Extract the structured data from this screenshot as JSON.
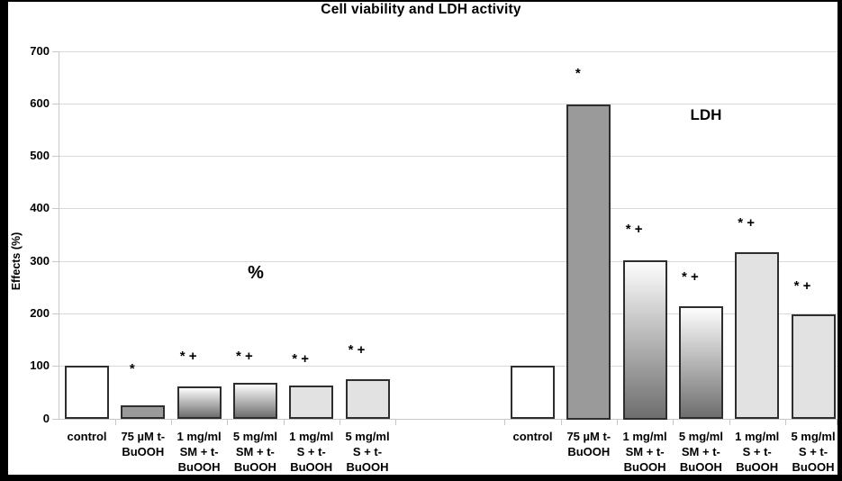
{
  "chart_data": {
    "type": "bar",
    "title": "Cell viability and LDH activity",
    "ylabel": "Effects (%)",
    "xlabel": "",
    "ylim": [
      0,
      700
    ],
    "yticks": [
      0,
      100,
      200,
      300,
      400,
      500,
      600,
      700
    ],
    "grid": true,
    "legend": false,
    "categories": [
      "control",
      "75 µM t-BuOOH",
      "1 mg/ml SM + t-BuOOH",
      "5 mg/ml SM + t-BuOOH",
      "1 mg/ml S + t-BuOOH",
      "5 mg/ml S + t-BuOOH"
    ],
    "category_lines": [
      [
        "control"
      ],
      [
        "75 µM t-",
        "BuOOH"
      ],
      [
        "1 mg/ml",
        "SM + t-",
        "BuOOH"
      ],
      [
        "5 mg/ml",
        "SM + t-",
        "BuOOH"
      ],
      [
        "1 mg/ml",
        "S + t-",
        "BuOOH"
      ],
      [
        "5 mg/ml",
        "S + t-",
        "BuOOH"
      ]
    ],
    "bar_styles": [
      "white",
      "solid-gray",
      "gradient",
      "gradient",
      "light-gray",
      "light-gray"
    ],
    "series": [
      {
        "name": "%",
        "values": [
          100,
          25,
          61,
          67,
          63,
          74
        ],
        "annotations": [
          "",
          "*",
          "* +",
          "* +",
          "* +",
          "* +"
        ],
        "annotation_levels": [
          null,
          94,
          117,
          117,
          112,
          129
        ]
      },
      {
        "name": "LDH",
        "values": [
          100,
          598,
          302,
          214,
          316,
          198
        ],
        "annotations": [
          "",
          "*",
          "* +",
          "* +",
          "* +",
          "* +"
        ],
        "annotation_levels": [
          null,
          657,
          359,
          268,
          371,
          252
        ]
      }
    ],
    "colors": {
      "solid_gray": "#9a9a9a",
      "light_gray": "#e2e2e2",
      "gradient_top": "#fdfdfd",
      "gradient_bottom": "#6e6e6e",
      "bar_border": "#2e2e2e",
      "grid": "#d9d9d9",
      "text": "#000000"
    }
  }
}
